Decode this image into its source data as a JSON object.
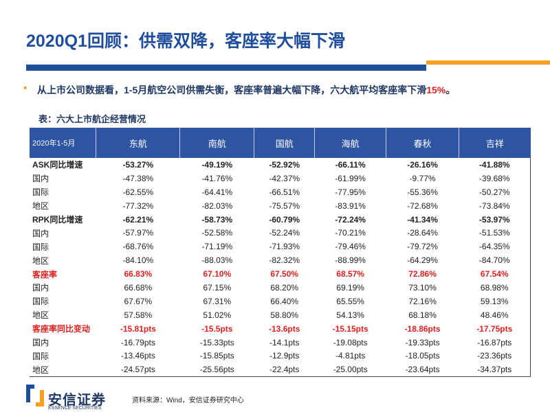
{
  "header": {
    "title": "2020Q1回顾：供需双降，客座率大幅下滑"
  },
  "bullet": {
    "marker": "•",
    "text": "从上市公司数据看，1-5月航空公司供需失衡，客座率普遍大幅下降，六大航平均客座率下滑",
    "highlight": "15%",
    "tail": "。"
  },
  "table": {
    "caption": "表：六大上市航企经营情况",
    "columns": [
      "2020年1-5月",
      "东航",
      "南航",
      "国航",
      "海航",
      "春秋",
      "吉祥"
    ],
    "rows": [
      [
        "ASK同比增速",
        "-53.27%",
        "-49.19%",
        "-52.92%",
        "-66.11%",
        "-26.16%",
        "-41.88%"
      ],
      [
        "国内",
        "-47.38%",
        "-41.76%",
        "-42.37%",
        "-61.99%",
        "-9.77%",
        "-39.68%"
      ],
      [
        "国际",
        "-62.55%",
        "-64.41%",
        "-66.51%",
        "-77.95%",
        "-55.36%",
        "-50.27%"
      ],
      [
        "地区",
        "-77.32%",
        "-82.03%",
        "-75.57%",
        "-83.91%",
        "-72.68%",
        "-73.84%"
      ],
      [
        "RPK同比增速",
        "-62.21%",
        "-58.73%",
        "-60.79%",
        "-72.24%",
        "-41.34%",
        "-53.97%"
      ],
      [
        "国内",
        "-57.97%",
        "-52.58%",
        "-52.24%",
        "-70.21%",
        "-28.64%",
        "-51.53%"
      ],
      [
        "国际",
        "-68.76%",
        "-71.19%",
        "-71.93%",
        "-79.46%",
        "-79.72%",
        "-64.35%"
      ],
      [
        "地区",
        "-84.10%",
        "-88.03%",
        "-82.32%",
        "-88.99%",
        "-64.29%",
        "-84.70%"
      ],
      [
        "客座率",
        "66.83%",
        "67.10%",
        "67.50%",
        "68.57%",
        "72.86%",
        "67.54%"
      ],
      [
        "国内",
        "66.68%",
        "67.15%",
        "68.20%",
        "69.19%",
        "73.10%",
        "68.98%"
      ],
      [
        "国际",
        "67.67%",
        "67.31%",
        "66.40%",
        "65.55%",
        "72.16%",
        "59.13%"
      ],
      [
        "地区",
        "57.58%",
        "51.02%",
        "58.80%",
        "54.13%",
        "68.18%",
        "48.46%"
      ],
      [
        "客座率同比变动",
        "-15.81pts",
        "-15.5pts",
        "-13.6pts",
        "-15.15pts",
        "-18.86pts",
        "-17.75pts"
      ],
      [
        "国内",
        "-16.79pts",
        "-15.33pts",
        "-14.1pts",
        "-19.08pts",
        "-19.33pts",
        "-16.87pts"
      ],
      [
        "国际",
        "-13.46pts",
        "-15.85pts",
        "-12.9pts",
        "-4.81pts",
        "-18.05pts",
        "-23.36pts"
      ],
      [
        "地区",
        "-24.57pts",
        "-25.56pts",
        "-22.4pts",
        "-25.00pts",
        "-23.64pts",
        "-34.37pts"
      ]
    ]
  },
  "footer": {
    "source": "资料来源：Wind，安信证券研究中心",
    "logo_cn": "安信证券",
    "logo_en": "ESSENCE SECURITIES"
  }
}
